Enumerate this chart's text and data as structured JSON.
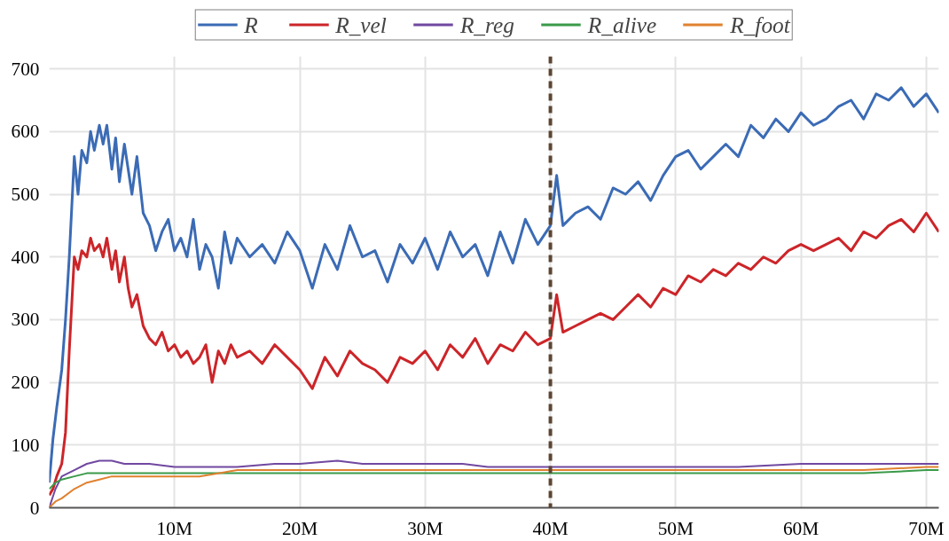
{
  "chart_data": {
    "type": "line",
    "xlim": [
      0,
      71
    ],
    "ylim": [
      0,
      720
    ],
    "xticks": [
      {
        "value": 10,
        "label": "10M"
      },
      {
        "value": 20,
        "label": "20M"
      },
      {
        "value": 30,
        "label": "30M"
      },
      {
        "value": 40,
        "label": "40M"
      },
      {
        "value": 50,
        "label": "50M"
      },
      {
        "value": 60,
        "label": "60M"
      },
      {
        "value": 70,
        "label": "70M"
      }
    ],
    "yticks": [
      0,
      100,
      200,
      300,
      400,
      500,
      600,
      700
    ],
    "grid": true,
    "legend": "top",
    "line_style": "solid",
    "marker": "none",
    "ref_lines": [
      {
        "axis": "x",
        "value": 40,
        "color": "#5c4533",
        "line_style": "dashed"
      }
    ],
    "series": [
      {
        "name": "R",
        "color": "#3b6bb5",
        "x": [
          0,
          0.3,
          0.6,
          1,
          1.3,
          1.6,
          2,
          2.3,
          2.6,
          3,
          3.3,
          3.6,
          4,
          4.3,
          4.6,
          5,
          5.3,
          5.6,
          6,
          6.3,
          6.6,
          7,
          7.5,
          8,
          8.5,
          9,
          9.5,
          10,
          10.5,
          11,
          11.5,
          12,
          12.5,
          13,
          13.5,
          14,
          14.5,
          15,
          16,
          17,
          18,
          19,
          20,
          21,
          22,
          23,
          24,
          25,
          26,
          27,
          28,
          29,
          30,
          31,
          32,
          33,
          34,
          35,
          36,
          37,
          38,
          39,
          40,
          40.5,
          41,
          42,
          43,
          44,
          45,
          46,
          47,
          48,
          49,
          50,
          51,
          52,
          53,
          54,
          55,
          56,
          57,
          58,
          59,
          60,
          61,
          62,
          63,
          64,
          65,
          66,
          67,
          68,
          69,
          70,
          71
        ],
        "values": [
          40,
          110,
          160,
          220,
          300,
          400,
          560,
          500,
          570,
          550,
          600,
          570,
          610,
          580,
          610,
          540,
          590,
          520,
          580,
          540,
          500,
          560,
          470,
          450,
          410,
          440,
          460,
          410,
          430,
          400,
          460,
          380,
          420,
          400,
          350,
          440,
          390,
          430,
          400,
          420,
          390,
          440,
          410,
          350,
          420,
          380,
          450,
          400,
          410,
          360,
          420,
          390,
          430,
          380,
          440,
          400,
          420,
          370,
          440,
          390,
          460,
          420,
          450,
          530,
          450,
          470,
          480,
          460,
          510,
          500,
          520,
          490,
          530,
          560,
          570,
          540,
          560,
          580,
          560,
          610,
          590,
          620,
          600,
          630,
          610,
          620,
          640,
          650,
          620,
          660,
          650,
          670,
          640,
          660,
          630
        ]
      },
      {
        "name": "R_vel",
        "color": "#cc2529",
        "x": [
          0,
          0.3,
          0.6,
          1,
          1.3,
          1.6,
          2,
          2.3,
          2.6,
          3,
          3.3,
          3.6,
          4,
          4.3,
          4.6,
          5,
          5.3,
          5.6,
          6,
          6.3,
          6.6,
          7,
          7.5,
          8,
          8.5,
          9,
          9.5,
          10,
          10.5,
          11,
          11.5,
          12,
          12.5,
          13,
          13.5,
          14,
          14.5,
          15,
          16,
          17,
          18,
          19,
          20,
          21,
          22,
          23,
          24,
          25,
          26,
          27,
          28,
          29,
          30,
          31,
          32,
          33,
          34,
          35,
          36,
          37,
          38,
          39,
          40,
          40.5,
          41,
          42,
          43,
          44,
          45,
          46,
          47,
          48,
          49,
          50,
          51,
          52,
          53,
          54,
          55,
          56,
          57,
          58,
          59,
          60,
          61,
          62,
          63,
          64,
          65,
          66,
          67,
          68,
          69,
          70,
          71
        ],
        "values": [
          20,
          30,
          50,
          70,
          120,
          250,
          400,
          380,
          410,
          400,
          430,
          410,
          420,
          400,
          430,
          380,
          410,
          360,
          400,
          350,
          320,
          340,
          290,
          270,
          260,
          280,
          250,
          260,
          240,
          250,
          230,
          240,
          260,
          200,
          250,
          230,
          260,
          240,
          250,
          230,
          260,
          240,
          220,
          190,
          240,
          210,
          250,
          230,
          220,
          200,
          240,
          230,
          250,
          220,
          260,
          240,
          270,
          230,
          260,
          250,
          280,
          260,
          270,
          340,
          280,
          290,
          300,
          310,
          300,
          320,
          340,
          320,
          350,
          340,
          370,
          360,
          380,
          370,
          390,
          380,
          400,
          390,
          410,
          420,
          410,
          420,
          430,
          410,
          440,
          430,
          450,
          460,
          440,
          470,
          440
        ]
      },
      {
        "name": "R_reg",
        "color": "#7048a0",
        "x": [
          0,
          0.5,
          1,
          2,
          3,
          4,
          5,
          6,
          8,
          10,
          12,
          15,
          18,
          20,
          23,
          25,
          28,
          30,
          33,
          35,
          38,
          40,
          42,
          45,
          50,
          55,
          60,
          65,
          70,
          71
        ],
        "values": [
          0,
          30,
          50,
          60,
          70,
          75,
          75,
          70,
          70,
          65,
          65,
          65,
          70,
          70,
          75,
          70,
          70,
          70,
          70,
          65,
          65,
          65,
          65,
          65,
          65,
          65,
          70,
          70,
          70,
          70
        ]
      },
      {
        "name": "R_alive",
        "color": "#3a9a48",
        "x": [
          0,
          0.5,
          1,
          2,
          3,
          4,
          5,
          6,
          8,
          10,
          12,
          15,
          20,
          25,
          30,
          35,
          40,
          45,
          50,
          55,
          60,
          65,
          70,
          71
        ],
        "values": [
          30,
          40,
          45,
          50,
          55,
          55,
          55,
          55,
          55,
          55,
          55,
          55,
          55,
          55,
          55,
          55,
          55,
          55,
          55,
          55,
          55,
          55,
          60,
          60
        ]
      },
      {
        "name": "R_foot",
        "color": "#e0812f",
        "x": [
          0,
          0.5,
          1,
          2,
          3,
          4,
          5,
          6,
          8,
          10,
          12,
          15,
          20,
          25,
          30,
          35,
          40,
          45,
          50,
          55,
          60,
          65,
          70,
          71
        ],
        "values": [
          0,
          10,
          15,
          30,
          40,
          45,
          50,
          50,
          50,
          50,
          50,
          60,
          60,
          60,
          60,
          60,
          60,
          60,
          60,
          60,
          60,
          60,
          65,
          65
        ]
      }
    ]
  }
}
